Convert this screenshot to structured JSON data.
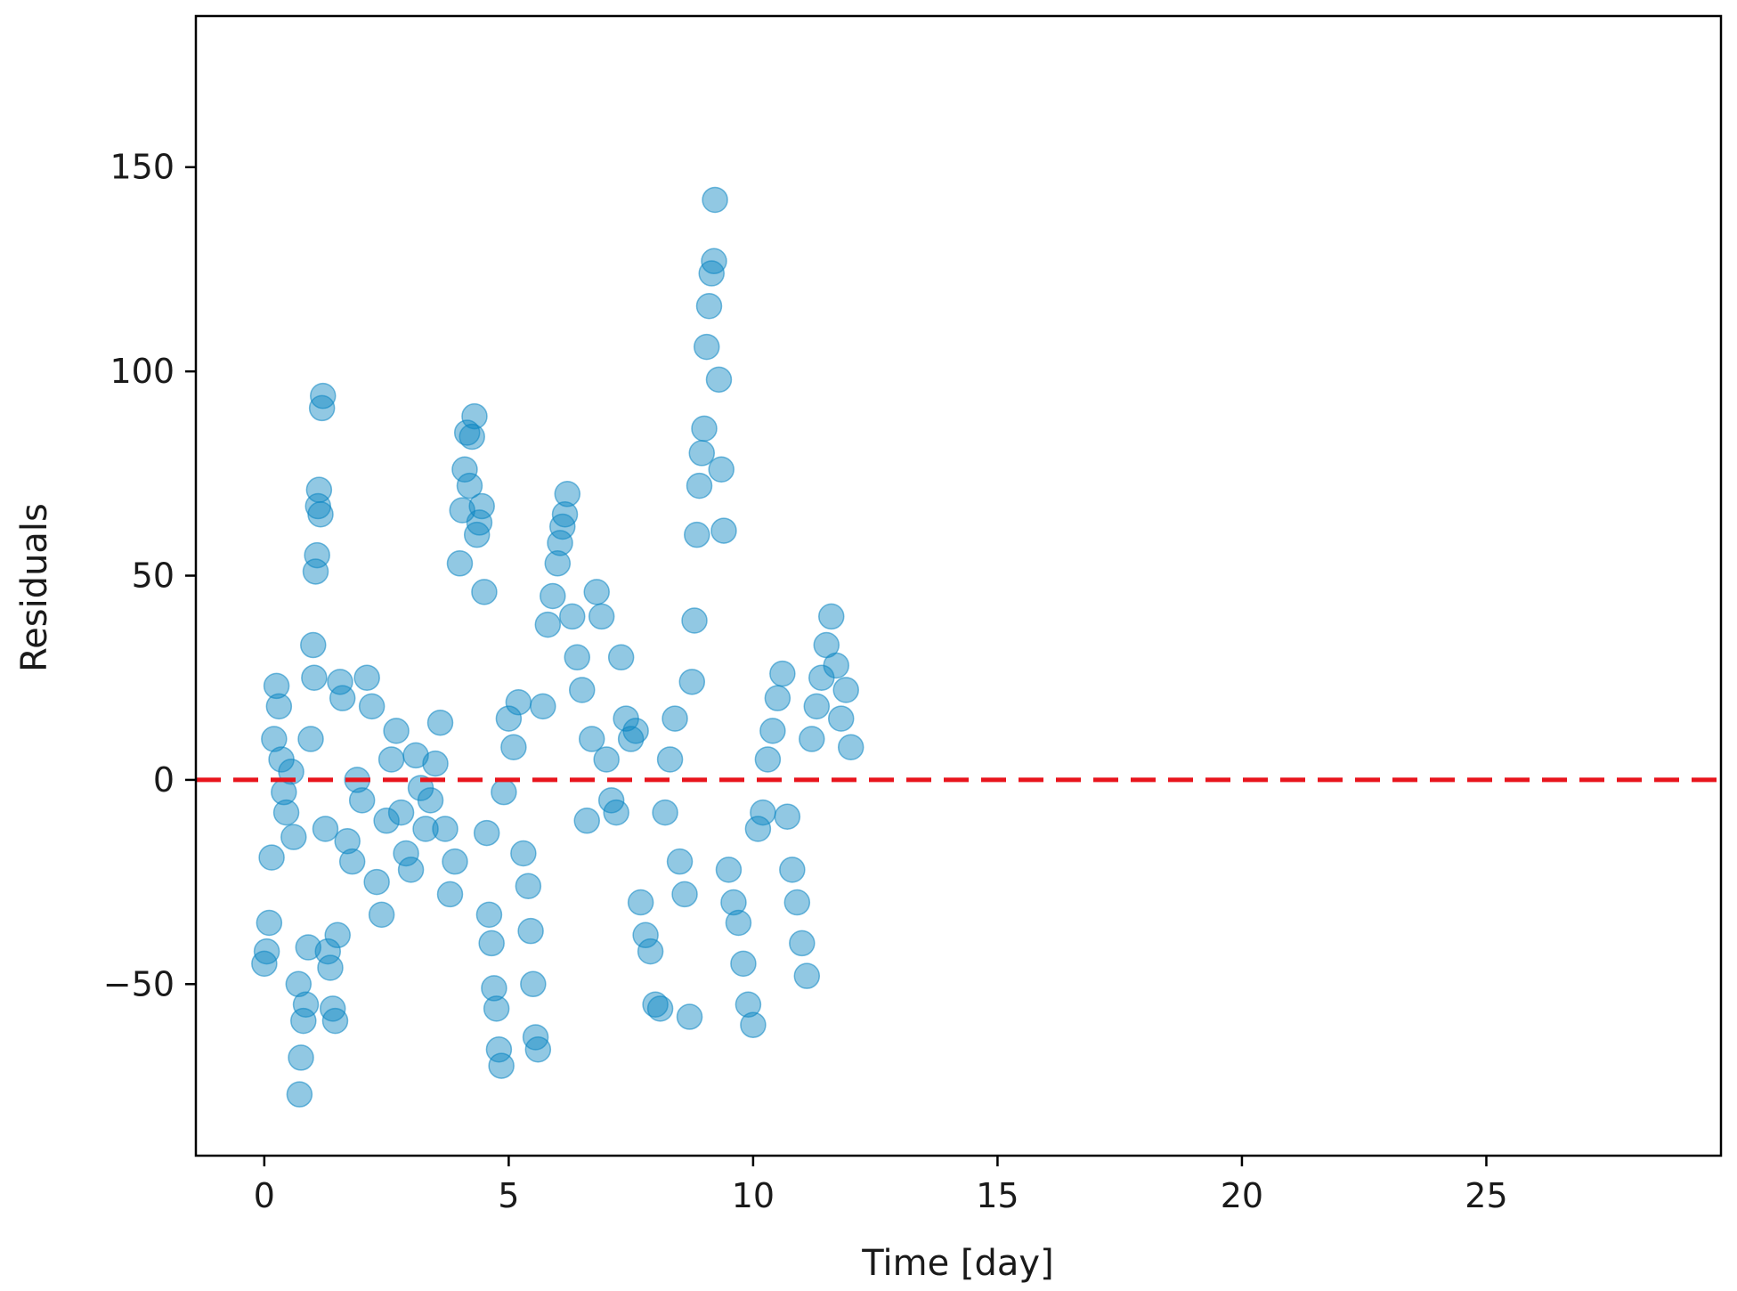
{
  "chart_data": {
    "type": "scatter",
    "title": "",
    "xlabel": "Time [day]",
    "ylabel": "Residuals",
    "xlim": [
      -1.4,
      29.8
    ],
    "ylim": [
      -92,
      187
    ],
    "x_ticks": [
      0,
      5,
      10,
      15,
      20,
      25
    ],
    "y_ticks": [
      -50,
      0,
      50,
      100,
      150
    ],
    "x_tick_labels": [
      "0",
      "5",
      "10",
      "15",
      "20",
      "25"
    ],
    "y_tick_labels": [
      "−50",
      "0",
      "50",
      "100",
      "150"
    ],
    "grid": false,
    "legend": "none",
    "reference_line": {
      "y": 0,
      "style": "dashed",
      "color": "#e8141c"
    },
    "marker_color": "#0a85c2",
    "marker_alpha": 0.45,
    "series": [
      {
        "points": [
          [
            0.0,
            -45
          ],
          [
            0.05,
            -42
          ],
          [
            0.1,
            -35
          ],
          [
            0.15,
            -19
          ],
          [
            0.2,
            10
          ],
          [
            0.25,
            23
          ],
          [
            0.3,
            18
          ],
          [
            0.35,
            5
          ],
          [
            0.4,
            -3
          ],
          [
            0.45,
            -8
          ],
          [
            0.55,
            2
          ],
          [
            0.6,
            -14
          ],
          [
            0.7,
            -50
          ],
          [
            0.72,
            -77
          ],
          [
            0.75,
            -68
          ],
          [
            0.8,
            -59
          ],
          [
            0.85,
            -55
          ],
          [
            0.9,
            -41
          ],
          [
            0.95,
            10
          ],
          [
            1.0,
            33
          ],
          [
            1.02,
            25
          ],
          [
            1.05,
            51
          ],
          [
            1.08,
            55
          ],
          [
            1.1,
            67
          ],
          [
            1.12,
            71
          ],
          [
            1.15,
            65
          ],
          [
            1.18,
            91
          ],
          [
            1.2,
            94
          ],
          [
            1.25,
            -12
          ],
          [
            1.3,
            -42
          ],
          [
            1.35,
            -46
          ],
          [
            1.4,
            -56
          ],
          [
            1.45,
            -59
          ],
          [
            1.5,
            -38
          ],
          [
            1.55,
            24
          ],
          [
            1.6,
            20
          ],
          [
            1.7,
            -15
          ],
          [
            1.8,
            -20
          ],
          [
            1.9,
            0
          ],
          [
            2.0,
            -5
          ],
          [
            2.1,
            25
          ],
          [
            2.2,
            18
          ],
          [
            2.3,
            -25
          ],
          [
            2.4,
            -33
          ],
          [
            2.5,
            -10
          ],
          [
            2.6,
            5
          ],
          [
            2.7,
            12
          ],
          [
            2.8,
            -8
          ],
          [
            2.9,
            -18
          ],
          [
            3.0,
            -22
          ],
          [
            3.1,
            6
          ],
          [
            3.2,
            -2
          ],
          [
            3.3,
            -12
          ],
          [
            3.4,
            -5
          ],
          [
            3.5,
            4
          ],
          [
            3.6,
            14
          ],
          [
            3.7,
            -12
          ],
          [
            3.8,
            -28
          ],
          [
            3.9,
            -20
          ],
          [
            4.0,
            53
          ],
          [
            4.05,
            66
          ],
          [
            4.1,
            76
          ],
          [
            4.15,
            85
          ],
          [
            4.2,
            72
          ],
          [
            4.25,
            84
          ],
          [
            4.3,
            89
          ],
          [
            4.35,
            60
          ],
          [
            4.4,
            63
          ],
          [
            4.45,
            67
          ],
          [
            4.5,
            46
          ],
          [
            4.55,
            -13
          ],
          [
            4.6,
            -33
          ],
          [
            4.65,
            -40
          ],
          [
            4.7,
            -51
          ],
          [
            4.75,
            -56
          ],
          [
            4.8,
            -66
          ],
          [
            4.85,
            -70
          ],
          [
            4.9,
            -3
          ],
          [
            5.0,
            15
          ],
          [
            5.1,
            8
          ],
          [
            5.2,
            19
          ],
          [
            5.3,
            -18
          ],
          [
            5.4,
            -26
          ],
          [
            5.45,
            -37
          ],
          [
            5.5,
            -50
          ],
          [
            5.55,
            -63
          ],
          [
            5.6,
            -66
          ],
          [
            5.7,
            18
          ],
          [
            5.8,
            38
          ],
          [
            5.9,
            45
          ],
          [
            6.0,
            53
          ],
          [
            6.05,
            58
          ],
          [
            6.1,
            62
          ],
          [
            6.15,
            65
          ],
          [
            6.2,
            70
          ],
          [
            6.3,
            40
          ],
          [
            6.4,
            30
          ],
          [
            6.5,
            22
          ],
          [
            6.6,
            -10
          ],
          [
            6.7,
            10
          ],
          [
            6.8,
            46
          ],
          [
            6.9,
            40
          ],
          [
            7.0,
            5
          ],
          [
            7.1,
            -5
          ],
          [
            7.2,
            -8
          ],
          [
            7.3,
            30
          ],
          [
            7.4,
            15
          ],
          [
            7.5,
            10
          ],
          [
            7.6,
            12
          ],
          [
            7.7,
            -30
          ],
          [
            7.8,
            -38
          ],
          [
            7.9,
            -42
          ],
          [
            8.0,
            -55
          ],
          [
            8.1,
            -56
          ],
          [
            8.2,
            -8
          ],
          [
            8.3,
            5
          ],
          [
            8.4,
            15
          ],
          [
            8.5,
            -20
          ],
          [
            8.6,
            -28
          ],
          [
            8.7,
            -58
          ],
          [
            8.75,
            24
          ],
          [
            8.8,
            39
          ],
          [
            8.85,
            60
          ],
          [
            8.9,
            72
          ],
          [
            8.95,
            80
          ],
          [
            9.0,
            86
          ],
          [
            9.05,
            106
          ],
          [
            9.1,
            116
          ],
          [
            9.15,
            124
          ],
          [
            9.2,
            127
          ],
          [
            9.22,
            142
          ],
          [
            9.3,
            98
          ],
          [
            9.35,
            76
          ],
          [
            9.4,
            61
          ],
          [
            9.5,
            -22
          ],
          [
            9.6,
            -30
          ],
          [
            9.7,
            -35
          ],
          [
            9.8,
            -45
          ],
          [
            9.9,
            -55
          ],
          [
            10.0,
            -60
          ],
          [
            10.1,
            -12
          ],
          [
            10.2,
            -8
          ],
          [
            10.3,
            5
          ],
          [
            10.4,
            12
          ],
          [
            10.5,
            20
          ],
          [
            10.6,
            26
          ],
          [
            10.7,
            -9
          ],
          [
            10.8,
            -22
          ],
          [
            10.9,
            -30
          ],
          [
            11.0,
            -40
          ],
          [
            11.1,
            -48
          ],
          [
            11.2,
            10
          ],
          [
            11.3,
            18
          ],
          [
            11.4,
            25
          ],
          [
            11.5,
            33
          ],
          [
            11.6,
            40
          ],
          [
            11.7,
            28
          ],
          [
            11.8,
            15
          ],
          [
            11.9,
            22
          ],
          [
            12.0,
            8
          ]
        ]
      }
    ]
  }
}
